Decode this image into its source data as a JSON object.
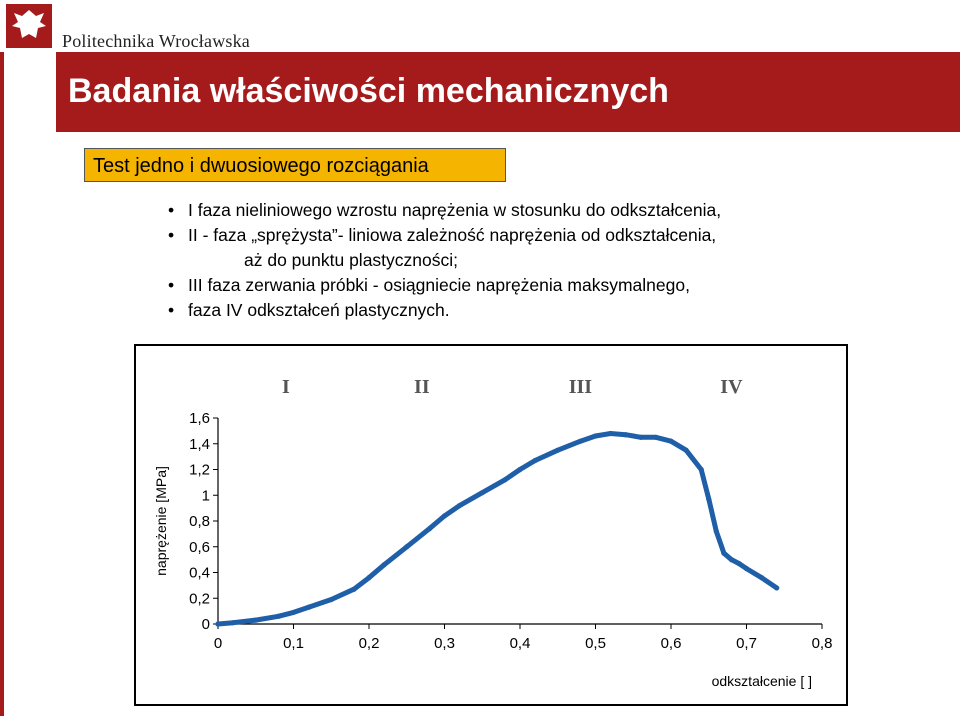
{
  "header": {
    "logo_text": "Politechnika Wrocławska",
    "logo_icon": "eagle-crest-icon",
    "accent": "#a51b1c"
  },
  "slide": {
    "title": "Badania właściwości mechanicznych",
    "subtitle": "Test jedno i dwuosiowego rozciągania",
    "bullets": [
      {
        "text": "I faza nieliniowego wzrostu naprężenia w stosunku  do odkształcenia,"
      },
      {
        "text": "II - faza „sprężysta”- liniowa zależność naprężenia od odkształcenia,"
      },
      {
        "text": "aż do punktu  plastyczności;",
        "continuation": true
      },
      {
        "text": "III faza zerwania próbki - osiągniecie naprężenia maksymalnego,"
      },
      {
        "text": "faza IV odkształceń plastycznych."
      }
    ]
  },
  "chart_data": {
    "type": "scatter",
    "title": "",
    "xlabel": "odkształcenie [ ]",
    "ylabel": "naprężenie [MPa]",
    "xlim": [
      0,
      0.8
    ],
    "ylim": [
      0,
      1.6
    ],
    "xticks": [
      "0",
      "0,1",
      "0,2",
      "0,3",
      "0,4",
      "0,5",
      "0,6",
      "0,7",
      "0,8"
    ],
    "yticks": [
      "0",
      "0,2",
      "0,4",
      "0,6",
      "0,8",
      "1",
      "1,2",
      "1,4",
      "1,6"
    ],
    "grid": false,
    "phase_labels": [
      {
        "label": "I",
        "x": 0.09
      },
      {
        "label": "II",
        "x": 0.27
      },
      {
        "label": "III",
        "x": 0.48
      },
      {
        "label": "IV",
        "x": 0.68
      }
    ],
    "series": [
      {
        "color": "#1f5fa8",
        "x": [
          0.0,
          0.02,
          0.05,
          0.08,
          0.1,
          0.12,
          0.15,
          0.18,
          0.2,
          0.22,
          0.25,
          0.28,
          0.3,
          0.32,
          0.35,
          0.38,
          0.4,
          0.42,
          0.45,
          0.48,
          0.5,
          0.52,
          0.54,
          0.56,
          0.58,
          0.6,
          0.62,
          0.64,
          0.65,
          0.66,
          0.67,
          0.68,
          0.69,
          0.7,
          0.72,
          0.74
        ],
        "y": [
          0.0,
          0.01,
          0.03,
          0.06,
          0.09,
          0.13,
          0.19,
          0.27,
          0.36,
          0.46,
          0.6,
          0.74,
          0.84,
          0.92,
          1.02,
          1.12,
          1.2,
          1.27,
          1.35,
          1.42,
          1.46,
          1.48,
          1.47,
          1.45,
          1.45,
          1.42,
          1.35,
          1.2,
          0.97,
          0.72,
          0.55,
          0.5,
          0.47,
          0.43,
          0.36,
          0.28
        ]
      }
    ]
  }
}
